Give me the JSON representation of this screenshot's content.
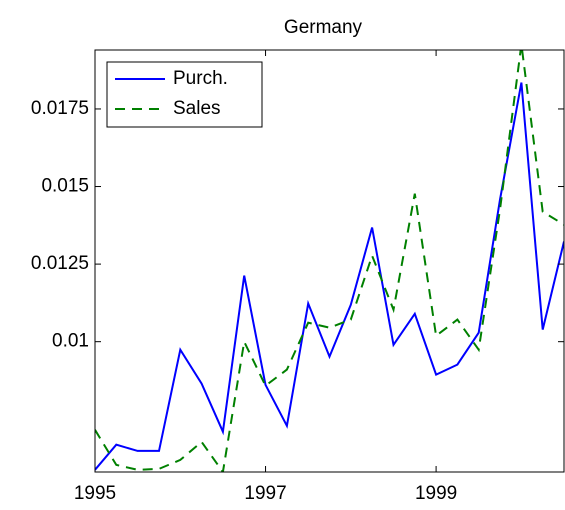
{
  "chart_data": {
    "type": "line",
    "title": "Germany",
    "x": [
      1995,
      1995.25,
      1995.5,
      1995.75,
      1996,
      1996.25,
      1996.5,
      1996.75,
      1997,
      1997.25,
      1997.5,
      1997.75,
      1998,
      1998.25,
      1998.5,
      1998.75,
      1999,
      1999.25,
      1999.5,
      1999.75,
      2000,
      2000.25,
      2000.5
    ],
    "series": [
      {
        "name": "Purch.",
        "color": "#0000ff",
        "dash": "solid",
        "values": [
          0.00587,
          0.00668,
          0.00648,
          0.00648,
          0.00974,
          0.00865,
          0.0071,
          0.01213,
          0.00861,
          0.00729,
          0.01123,
          0.00952,
          0.01119,
          0.01368,
          0.0099,
          0.0109,
          0.00894,
          0.00926,
          0.01029,
          0.01458,
          0.01835,
          0.01039,
          0.01323
        ]
      },
      {
        "name": "Sales",
        "color": "#008000",
        "dash": "dashed",
        "values": [
          0.00716,
          0.00603,
          0.00587,
          0.0059,
          0.00619,
          0.00677,
          0.0058,
          0.01,
          0.00858,
          0.0091,
          0.01061,
          0.01045,
          0.01071,
          0.01277,
          0.01103,
          0.01477,
          0.01019,
          0.01071,
          0.00974,
          0.01426,
          0.01958,
          0.01419,
          0.01377
        ]
      }
    ],
    "xlim": [
      1995,
      2000.5
    ],
    "xticks": [
      1995,
      1997,
      1999
    ],
    "ylim": [
      0.0058,
      0.0194
    ],
    "yticks": [
      0.01,
      0.0125,
      0.015,
      0.0175
    ],
    "grid": false,
    "legend": "upper left"
  }
}
